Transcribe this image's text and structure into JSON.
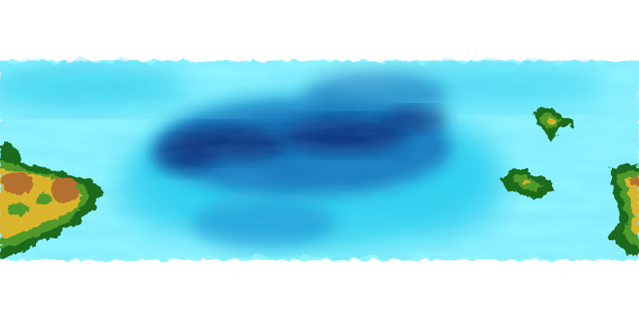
{
  "map": {
    "projection": "equirectangular",
    "colors": {
      "background": "#ffffff",
      "ice": "#ffffff",
      "shallow_water": "#8ff4ff",
      "mid_water": "#2fd0f0",
      "deep_water": "#1470b8",
      "deepest_water": "#0a2f78",
      "lowland": "#1f6b1c",
      "plains": "#4f9a2a",
      "hills": "#d9b52e",
      "highland": "#b3702e",
      "peak": "#a65e3a"
    },
    "features": [
      {
        "type": "polar-ice-cap",
        "name": "north-ice-cap"
      },
      {
        "type": "polar-ice-cap",
        "name": "south-ice-cap"
      },
      {
        "type": "ocean",
        "name": "world-ocean"
      },
      {
        "type": "ocean-basin",
        "name": "central-deep-basin"
      },
      {
        "type": "landmass",
        "name": "western-continent"
      },
      {
        "type": "landmass",
        "name": "eastern-island-north"
      },
      {
        "type": "landmass",
        "name": "eastern-island-central"
      },
      {
        "type": "landmass",
        "name": "eastern-edge-landmass"
      }
    ]
  }
}
